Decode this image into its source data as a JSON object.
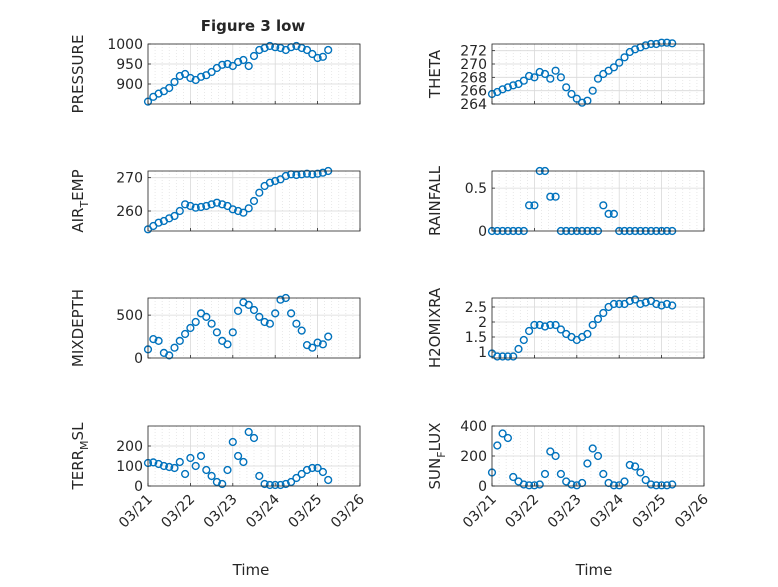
{
  "figure_title": "Figure 3 low",
  "xlabel": "Time",
  "x_ticks": [
    "03/21",
    "03/22",
    "03/23",
    "03/24",
    "03/25",
    "03/26"
  ],
  "colors": {
    "marker": "#0072BD",
    "grid": "#d9d9d9",
    "axis": "#262626"
  },
  "chart_data": [
    {
      "type": "scatter",
      "ylabel": "PRESSURE",
      "ylim": [
        850,
        1000
      ],
      "yticks": [
        "900",
        "950",
        "1000"
      ],
      "grid": true,
      "x": [
        "03/21 00:00",
        "03/21 03:00",
        "03/21 06:00",
        "03/21 09:00",
        "03/21 12:00",
        "03/21 15:00",
        "03/21 18:00",
        "03/21 21:00",
        "03/22 00:00",
        "03/22 03:00",
        "03/22 06:00",
        "03/22 09:00",
        "03/22 12:00",
        "03/22 15:00",
        "03/22 18:00",
        "03/22 21:00",
        "03/23 00:00",
        "03/23 03:00",
        "03/23 06:00",
        "03/23 09:00",
        "03/23 12:00",
        "03/23 15:00",
        "03/23 18:00",
        "03/23 21:00",
        "03/24 00:00",
        "03/24 03:00",
        "03/24 06:00",
        "03/24 09:00",
        "03/24 12:00",
        "03/24 15:00",
        "03/24 18:00",
        "03/24 21:00",
        "03/25 00:00",
        "03/25 03:00",
        "03/25 06:00"
      ],
      "y": [
        856,
        868,
        876,
        882,
        890,
        905,
        920,
        925,
        915,
        910,
        918,
        922,
        930,
        940,
        948,
        950,
        945,
        955,
        960,
        945,
        970,
        985,
        990,
        995,
        992,
        990,
        985,
        992,
        995,
        990,
        985,
        975,
        965,
        968,
        985
      ]
    },
    {
      "type": "scatter",
      "ylabel": "THETA",
      "ylim": [
        264,
        273
      ],
      "yticks": [
        "264",
        "266",
        "268",
        "270",
        "272"
      ],
      "grid": true,
      "x": [
        "03/21 00:00",
        "03/21 03:00",
        "03/21 06:00",
        "03/21 09:00",
        "03/21 12:00",
        "03/21 15:00",
        "03/21 18:00",
        "03/21 21:00",
        "03/22 00:00",
        "03/22 03:00",
        "03/22 06:00",
        "03/22 09:00",
        "03/22 12:00",
        "03/22 15:00",
        "03/22 18:00",
        "03/22 21:00",
        "03/23 00:00",
        "03/23 03:00",
        "03/23 06:00",
        "03/23 09:00",
        "03/23 12:00",
        "03/23 15:00",
        "03/23 18:00",
        "03/23 21:00",
        "03/24 00:00",
        "03/24 03:00",
        "03/24 06:00",
        "03/24 09:00",
        "03/24 12:00",
        "03/24 15:00",
        "03/24 18:00",
        "03/24 21:00",
        "03/25 00:00",
        "03/25 03:00",
        "03/25 06:00"
      ],
      "y": [
        265.5,
        265.8,
        266.2,
        266.5,
        266.8,
        267.0,
        267.5,
        268.2,
        268.0,
        268.8,
        268.5,
        267.8,
        269.0,
        268.0,
        266.5,
        265.5,
        264.8,
        264.2,
        264.5,
        266.0,
        267.8,
        268.5,
        269.0,
        269.5,
        270.2,
        271.0,
        271.8,
        272.2,
        272.5,
        272.8,
        273.0,
        273.0,
        273.2,
        273.2,
        273.1
      ]
    },
    {
      "type": "scatter",
      "ylabel": "AIR_TEMP",
      "ylim": [
        254,
        272
      ],
      "yticks": [
        "260",
        "270"
      ],
      "grid": true,
      "x": [
        "03/21 00:00",
        "03/21 03:00",
        "03/21 06:00",
        "03/21 09:00",
        "03/21 12:00",
        "03/21 15:00",
        "03/21 18:00",
        "03/21 21:00",
        "03/22 00:00",
        "03/22 03:00",
        "03/22 06:00",
        "03/22 09:00",
        "03/22 12:00",
        "03/22 15:00",
        "03/22 18:00",
        "03/22 21:00",
        "03/23 00:00",
        "03/23 03:00",
        "03/23 06:00",
        "03/23 09:00",
        "03/23 12:00",
        "03/23 15:00",
        "03/23 18:00",
        "03/23 21:00",
        "03/24 00:00",
        "03/24 03:00",
        "03/24 06:00",
        "03/24 09:00",
        "03/24 12:00",
        "03/24 15:00",
        "03/24 18:00",
        "03/24 21:00",
        "03/25 00:00",
        "03/25 03:00",
        "03/25 06:00"
      ],
      "y": [
        254.5,
        255.5,
        256.5,
        257.0,
        257.8,
        258.5,
        260.0,
        262.0,
        261.5,
        261.0,
        261.2,
        261.5,
        262.0,
        262.5,
        262.0,
        261.5,
        260.5,
        260.0,
        259.5,
        260.8,
        263.0,
        265.5,
        267.5,
        268.5,
        269.0,
        269.5,
        270.5,
        271.0,
        270.8,
        271.0,
        271.2,
        271.0,
        271.2,
        271.5,
        272.0
      ]
    },
    {
      "type": "scatter",
      "ylabel": "RAINFALL",
      "ylim": [
        0,
        0.7
      ],
      "yticks": [
        "0",
        "0.5"
      ],
      "grid": true,
      "x": [
        "03/21 00:00",
        "03/21 03:00",
        "03/21 06:00",
        "03/21 09:00",
        "03/21 12:00",
        "03/21 15:00",
        "03/21 18:00",
        "03/21 21:00",
        "03/22 00:00",
        "03/22 03:00",
        "03/22 06:00",
        "03/22 09:00",
        "03/22 12:00",
        "03/22 15:00",
        "03/22 18:00",
        "03/22 21:00",
        "03/23 00:00",
        "03/23 03:00",
        "03/23 06:00",
        "03/23 09:00",
        "03/23 12:00",
        "03/23 15:00",
        "03/23 18:00",
        "03/23 21:00",
        "03/24 00:00",
        "03/24 03:00",
        "03/24 06:00",
        "03/24 09:00",
        "03/24 12:00",
        "03/24 15:00",
        "03/24 18:00",
        "03/24 21:00",
        "03/25 00:00",
        "03/25 03:00",
        "03/25 06:00"
      ],
      "y": [
        0,
        0,
        0,
        0,
        0,
        0,
        0,
        0.3,
        0.3,
        0.7,
        0.7,
        0.4,
        0.4,
        0,
        0,
        0,
        0,
        0,
        0,
        0,
        0,
        0.3,
        0.2,
        0.2,
        0,
        0,
        0,
        0,
        0,
        0,
        0,
        0,
        0,
        0,
        0
      ]
    },
    {
      "type": "scatter",
      "ylabel": "MIXDEPTH",
      "ylim": [
        0,
        700
      ],
      "yticks": [
        "0",
        "500"
      ],
      "grid": true,
      "x": [
        "03/21 00:00",
        "03/21 03:00",
        "03/21 06:00",
        "03/21 09:00",
        "03/21 12:00",
        "03/21 15:00",
        "03/21 18:00",
        "03/21 21:00",
        "03/22 00:00",
        "03/22 03:00",
        "03/22 06:00",
        "03/22 09:00",
        "03/22 12:00",
        "03/22 15:00",
        "03/22 18:00",
        "03/22 21:00",
        "03/23 00:00",
        "03/23 03:00",
        "03/23 06:00",
        "03/23 09:00",
        "03/23 12:00",
        "03/23 15:00",
        "03/23 18:00",
        "03/23 21:00",
        "03/24 00:00",
        "03/24 03:00",
        "03/24 06:00",
        "03/24 09:00",
        "03/24 12:00",
        "03/24 15:00",
        "03/24 18:00",
        "03/24 21:00",
        "03/25 00:00",
        "03/25 03:00",
        "03/25 06:00"
      ],
      "y": [
        100,
        220,
        200,
        60,
        30,
        120,
        200,
        280,
        350,
        420,
        520,
        480,
        400,
        300,
        200,
        160,
        300,
        550,
        650,
        620,
        560,
        480,
        420,
        400,
        520,
        680,
        700,
        520,
        400,
        320,
        150,
        120,
        180,
        160,
        250
      ]
    },
    {
      "type": "scatter",
      "ylabel": "H2OMIXRA",
      "ylim": [
        0.8,
        2.8
      ],
      "yticks": [
        "1",
        "1.5",
        "2",
        "2.5"
      ],
      "grid": true,
      "x": [
        "03/21 00:00",
        "03/21 03:00",
        "03/21 06:00",
        "03/21 09:00",
        "03/21 12:00",
        "03/21 15:00",
        "03/21 18:00",
        "03/21 21:00",
        "03/22 00:00",
        "03/22 03:00",
        "03/22 06:00",
        "03/22 09:00",
        "03/22 12:00",
        "03/22 15:00",
        "03/22 18:00",
        "03/22 21:00",
        "03/23 00:00",
        "03/23 03:00",
        "03/23 06:00",
        "03/23 09:00",
        "03/23 12:00",
        "03/23 15:00",
        "03/23 18:00",
        "03/23 21:00",
        "03/24 00:00",
        "03/24 03:00",
        "03/24 06:00",
        "03/24 09:00",
        "03/24 12:00",
        "03/24 15:00",
        "03/24 18:00",
        "03/24 21:00",
        "03/25 00:00",
        "03/25 03:00",
        "03/25 06:00"
      ],
      "y": [
        0.95,
        0.85,
        0.85,
        0.85,
        0.85,
        1.1,
        1.4,
        1.7,
        1.9,
        1.9,
        1.85,
        1.9,
        1.9,
        1.75,
        1.6,
        1.5,
        1.4,
        1.5,
        1.6,
        1.9,
        2.1,
        2.3,
        2.5,
        2.6,
        2.6,
        2.6,
        2.7,
        2.75,
        2.6,
        2.65,
        2.7,
        2.6,
        2.55,
        2.6,
        2.55
      ]
    },
    {
      "type": "scatter",
      "ylabel": "TERR_MSL",
      "ylim": [
        0,
        300
      ],
      "yticks": [
        "0",
        "100",
        "200"
      ],
      "grid": true,
      "x": [
        "03/21 00:00",
        "03/21 03:00",
        "03/21 06:00",
        "03/21 09:00",
        "03/21 12:00",
        "03/21 15:00",
        "03/21 18:00",
        "03/21 21:00",
        "03/22 00:00",
        "03/22 03:00",
        "03/22 06:00",
        "03/22 09:00",
        "03/22 12:00",
        "03/22 15:00",
        "03/22 18:00",
        "03/22 21:00",
        "03/23 00:00",
        "03/23 03:00",
        "03/23 06:00",
        "03/23 09:00",
        "03/23 12:00",
        "03/23 15:00",
        "03/23 18:00",
        "03/23 21:00",
        "03/24 00:00",
        "03/24 03:00",
        "03/24 06:00",
        "03/24 09:00",
        "03/24 12:00",
        "03/24 15:00",
        "03/24 18:00",
        "03/24 21:00",
        "03/25 00:00",
        "03/25 03:00",
        "03/25 06:00"
      ],
      "y": [
        115,
        118,
        110,
        100,
        95,
        90,
        120,
        60,
        140,
        100,
        150,
        80,
        50,
        20,
        10,
        80,
        220,
        150,
        120,
        270,
        240,
        50,
        10,
        5,
        5,
        5,
        10,
        20,
        40,
        60,
        80,
        90,
        90,
        70,
        30
      ]
    },
    {
      "type": "scatter",
      "ylabel": "SUN_FLUX",
      "ylim": [
        0,
        400
      ],
      "yticks": [
        "0",
        "200",
        "400"
      ],
      "grid": true,
      "x": [
        "03/21 00:00",
        "03/21 03:00",
        "03/21 06:00",
        "03/21 09:00",
        "03/21 12:00",
        "03/21 15:00",
        "03/21 18:00",
        "03/21 21:00",
        "03/22 00:00",
        "03/22 03:00",
        "03/22 06:00",
        "03/22 09:00",
        "03/22 12:00",
        "03/22 15:00",
        "03/22 18:00",
        "03/22 21:00",
        "03/23 00:00",
        "03/23 03:00",
        "03/23 06:00",
        "03/23 09:00",
        "03/23 12:00",
        "03/23 15:00",
        "03/23 18:00",
        "03/23 21:00",
        "03/24 00:00",
        "03/24 03:00",
        "03/24 06:00",
        "03/24 09:00",
        "03/24 12:00",
        "03/24 15:00",
        "03/24 18:00",
        "03/24 21:00",
        "03/25 00:00",
        "03/25 03:00",
        "03/25 06:00"
      ],
      "y": [
        90,
        270,
        350,
        320,
        60,
        30,
        10,
        5,
        5,
        10,
        80,
        230,
        200,
        80,
        30,
        10,
        5,
        20,
        150,
        250,
        200,
        80,
        20,
        5,
        5,
        30,
        140,
        130,
        90,
        40,
        10,
        5,
        5,
        5,
        10
      ]
    }
  ]
}
